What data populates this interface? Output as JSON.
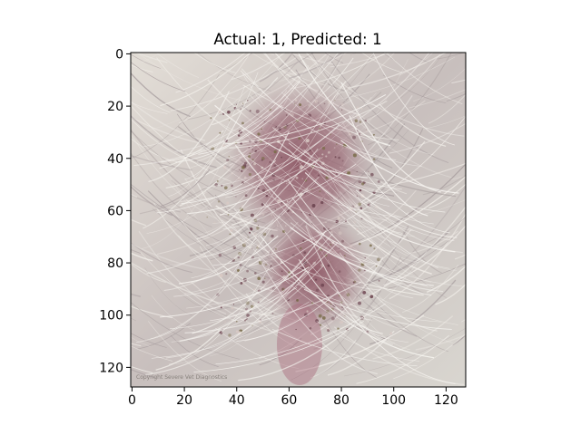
{
  "chart_data": {
    "type": "image",
    "title": "Actual: 1, Predicted: 1",
    "xlabel": "",
    "ylabel": "",
    "xlim": [
      -0.5,
      127.5
    ],
    "ylim": [
      127.5,
      -0.5
    ],
    "y_axis_inverted": true,
    "grid": false,
    "legend": "none",
    "image_size": [
      128,
      128
    ],
    "image_description_colors": {
      "fur_light": "#dedbd3",
      "fur_mid": "#bdb3b0",
      "lesion_red": "#8f5a67",
      "lesion_dark": "#6d4550",
      "crust": "#7b6d4b"
    },
    "x_ticks": [
      {
        "value": 0,
        "label": "0"
      },
      {
        "value": 20,
        "label": "20"
      },
      {
        "value": 40,
        "label": "40"
      },
      {
        "value": 60,
        "label": "60"
      },
      {
        "value": 80,
        "label": "80"
      },
      {
        "value": 100,
        "label": "100"
      },
      {
        "value": 120,
        "label": "120"
      }
    ],
    "y_ticks": [
      {
        "value": 0,
        "label": "0"
      },
      {
        "value": 20,
        "label": "20"
      },
      {
        "value": 40,
        "label": "40"
      },
      {
        "value": 60,
        "label": "60"
      },
      {
        "value": 80,
        "label": "80"
      },
      {
        "value": 100,
        "label": "100"
      },
      {
        "value": 120,
        "label": "120"
      }
    ],
    "watermark_text": "Copyright Severe Vet Diagnostics"
  }
}
